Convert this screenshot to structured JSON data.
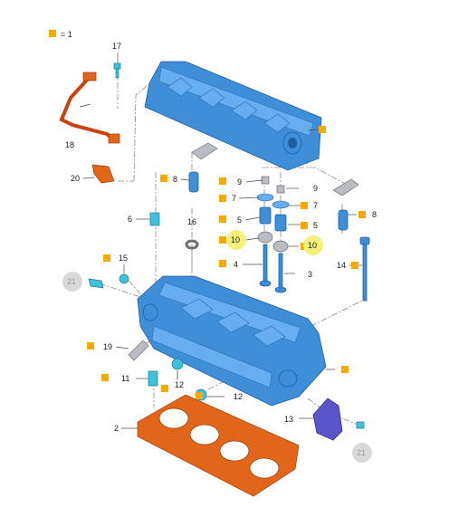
{
  "legend": {
    "text": "= 1"
  },
  "callouts": {
    "c17": "17",
    "c18": "18",
    "c20": "20",
    "c6": "6",
    "c8l": "8",
    "c16": "16",
    "c9a": "9",
    "c9b": "9",
    "c7a": "7",
    "c7b": "7",
    "c5a": "5",
    "c5b": "5",
    "c8r": "8",
    "c10a": "10",
    "c10b": "10",
    "c4": "4",
    "c3": "3",
    "c14": "14",
    "c15": "15",
    "c21a": "21",
    "c19": "19",
    "c11": "11",
    "c12a": "12",
    "c12b": "12",
    "c13": "13",
    "c2": "2",
    "c21b": "21"
  },
  "colors": {
    "marker": "#f7a900",
    "highlight": "#f4f07a",
    "ghost": "#d9d9d9",
    "part": "#3f8ed8",
    "gasket": "#d77a2e"
  }
}
